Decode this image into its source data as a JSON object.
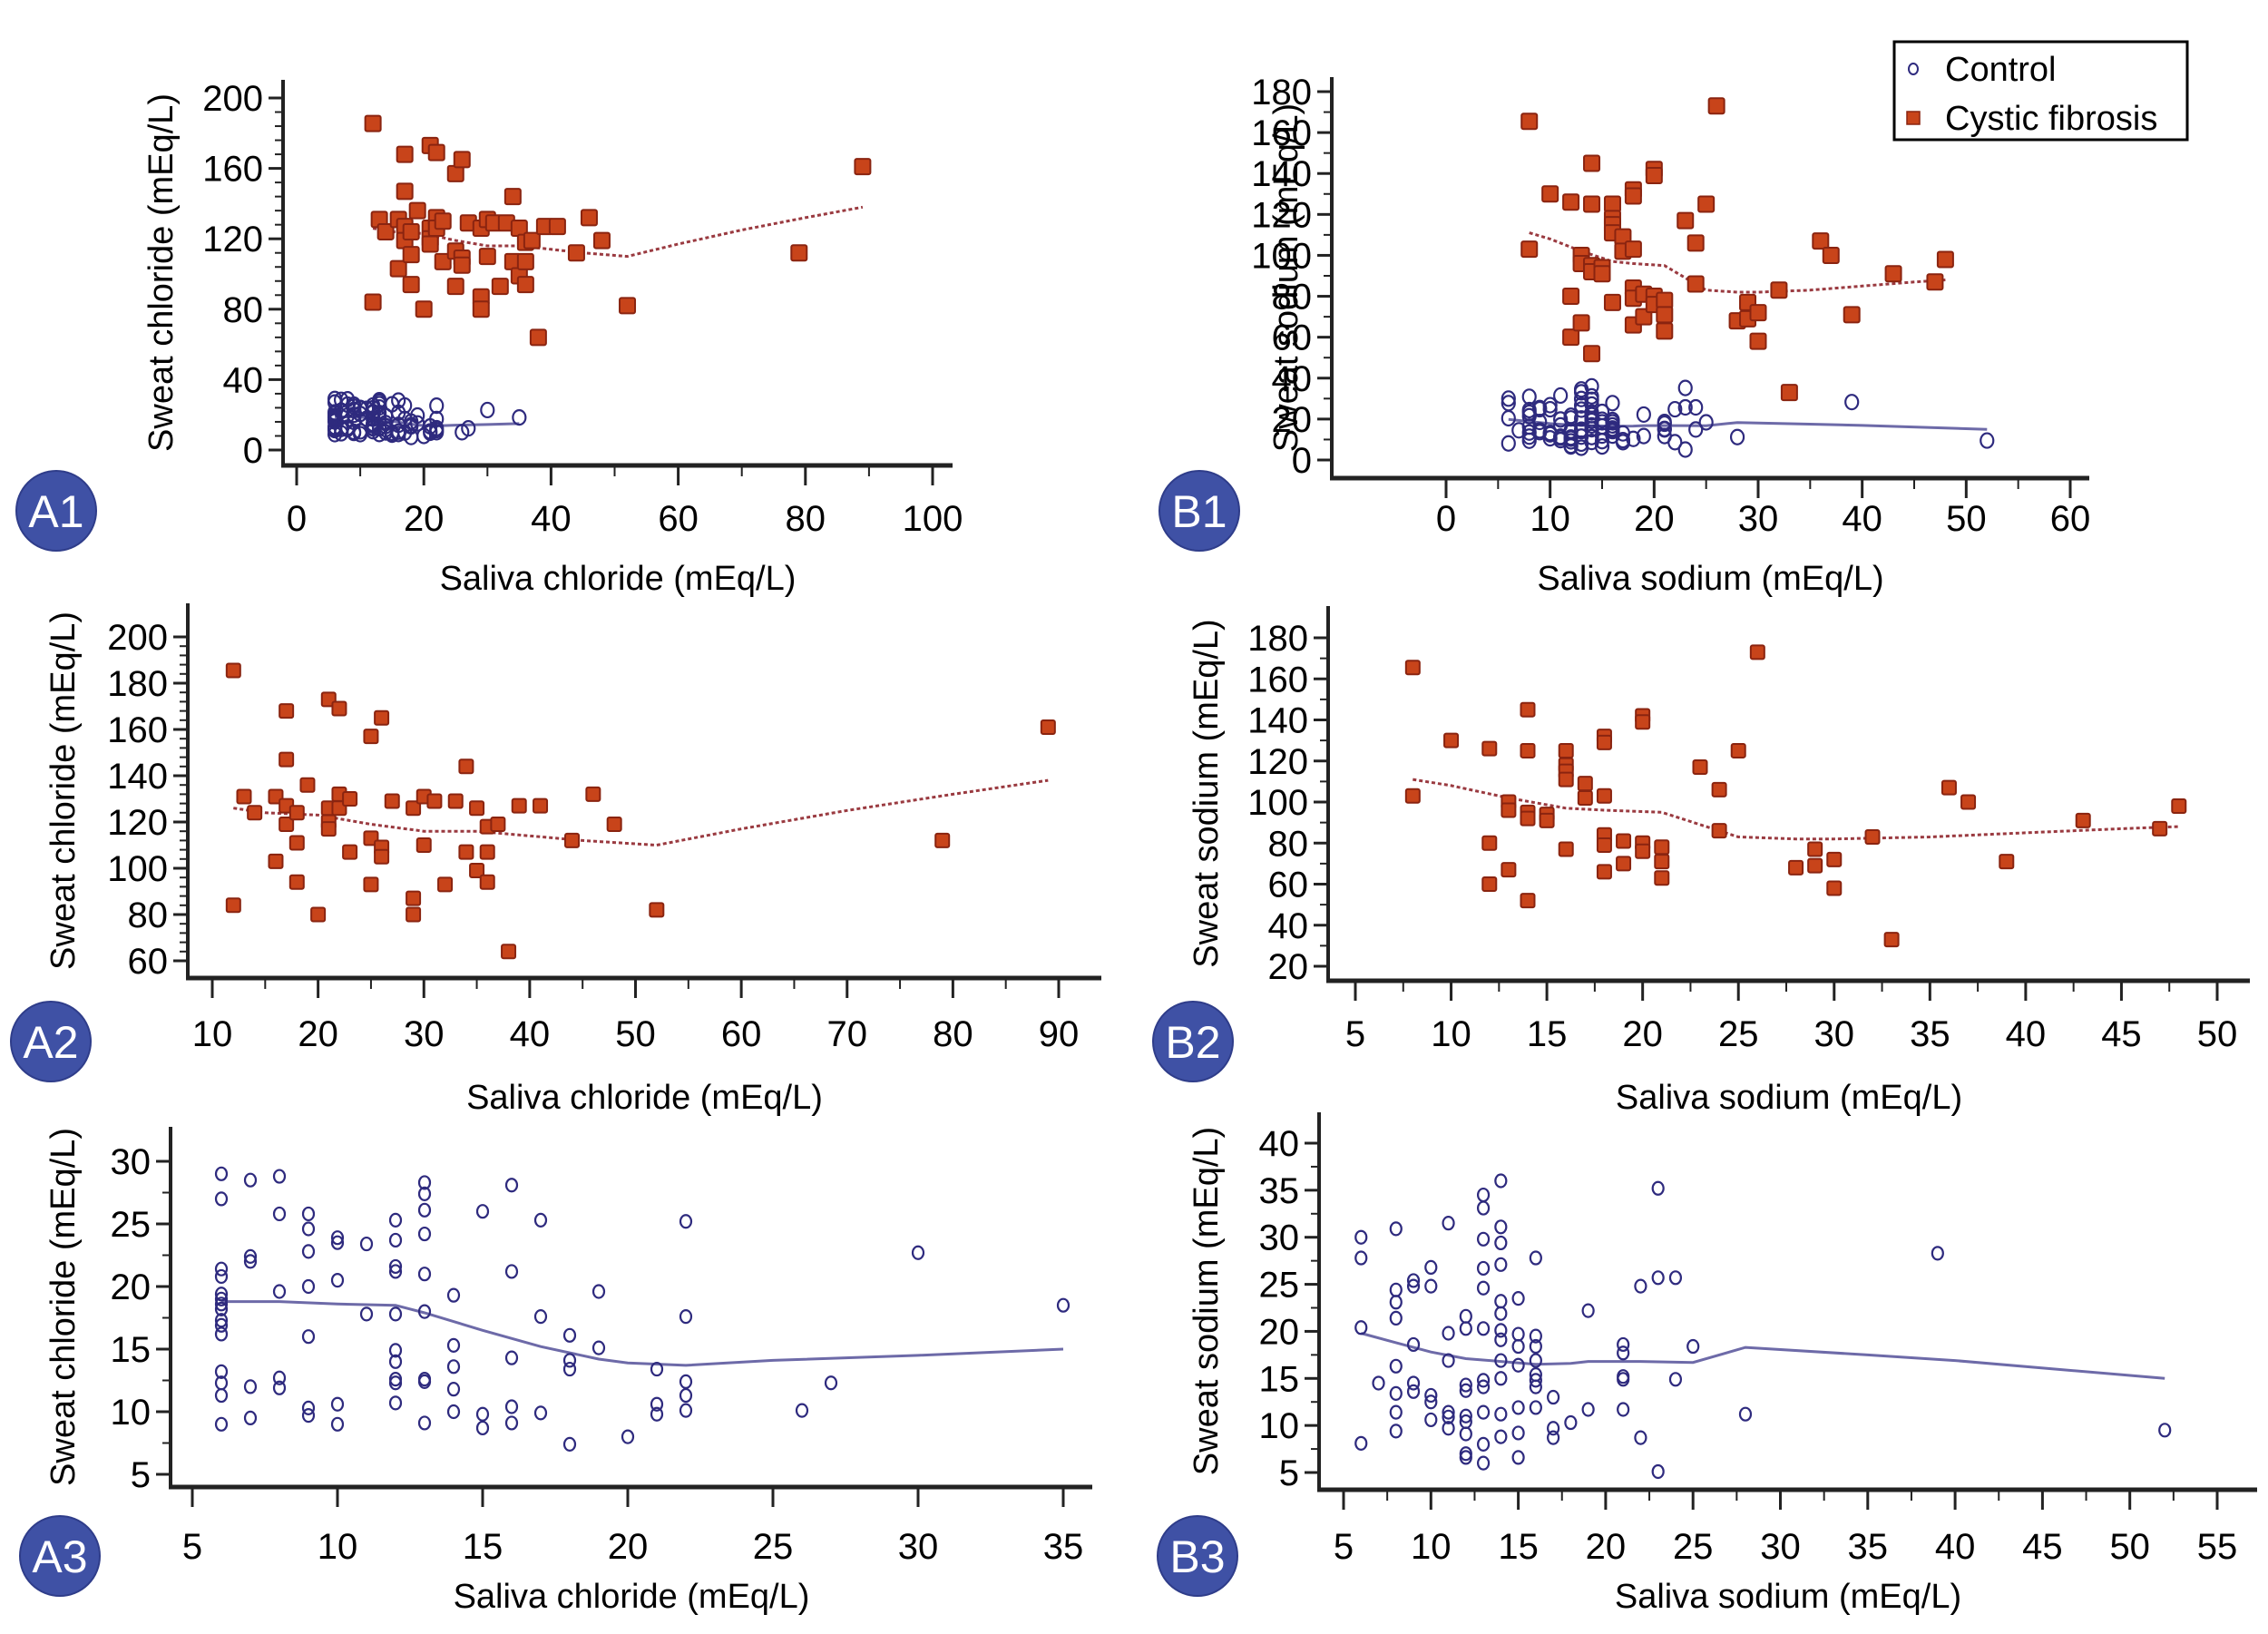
{
  "colors": {
    "control": "#2e2a7e",
    "control_line": "#6d6aa8",
    "cf_fill": "#c8441a",
    "cf_edge": "#8a2410",
    "cf_line": "#9a3a40",
    "badge": "#3f51a5",
    "axis": "#222222"
  },
  "legend": {
    "placement": "top-right",
    "items": [
      {
        "label": "Control",
        "marker": "open-circle"
      },
      {
        "label": "Cystic fibrosis",
        "marker": "filled-square"
      }
    ]
  },
  "datasets": {
    "control_chloride": {
      "x": [
        6,
        6,
        6,
        6,
        6,
        6,
        6,
        6,
        6,
        6,
        6,
        6,
        6,
        6,
        6,
        7,
        7,
        7,
        7,
        7,
        8,
        8,
        8,
        8,
        8,
        9,
        9,
        9,
        9,
        9,
        9,
        9,
        10,
        10,
        10,
        10,
        10,
        11,
        11,
        12,
        12,
        12,
        12,
        12,
        12,
        12,
        12,
        12,
        12,
        13,
        13,
        13,
        13,
        13,
        13,
        13,
        13,
        13,
        14,
        14,
        14,
        14,
        14,
        15,
        15,
        15,
        16,
        16,
        16,
        16,
        16,
        17,
        17,
        17,
        18,
        18,
        18,
        18,
        19,
        19,
        20,
        21,
        21,
        21,
        22,
        22,
        22,
        22,
        22,
        26,
        27,
        30,
        35
      ],
      "y": [
        29,
        27,
        21.4,
        20.8,
        19.4,
        19,
        18.6,
        18.2,
        17.3,
        16.9,
        16.2,
        13.2,
        12.3,
        11.3,
        9.0,
        28.5,
        22.4,
        22,
        12,
        9.5,
        28.8,
        25.8,
        19.6,
        12.7,
        11.9,
        25.8,
        24.6,
        22.8,
        20,
        16,
        10.3,
        9.7,
        23.9,
        23.5,
        20.5,
        10.6,
        9,
        23.4,
        17.8,
        25.3,
        23.7,
        21.6,
        21.2,
        17.8,
        14.9,
        14.0,
        12.6,
        12.3,
        10.7,
        28.3,
        27.4,
        26.1,
        24.2,
        21,
        18,
        12.6,
        12.4,
        9.1,
        19.3,
        15.3,
        13.6,
        11.8,
        10,
        26,
        9.8,
        8.7,
        28.1,
        21.2,
        14.3,
        10.4,
        9.1,
        25.3,
        17.6,
        9.9,
        16.1,
        14.1,
        13.4,
        7.4,
        19.6,
        15.1,
        8.0,
        13.4,
        10.6,
        9.8,
        25.2,
        17.6,
        12.4,
        11.3,
        10.1,
        10.1,
        12.3,
        22.7,
        18.5
      ]
    },
    "cf_chloride": {
      "x": [
        12,
        12,
        13,
        14,
        16,
        16,
        17,
        17,
        17,
        17,
        18,
        18,
        18,
        19,
        20,
        21,
        21,
        21,
        21,
        22,
        22,
        22,
        23,
        23,
        25,
        25,
        25,
        26,
        26,
        26,
        27,
        29,
        29,
        29,
        30,
        30,
        31,
        32,
        33,
        34,
        34,
        35,
        35,
        36,
        36,
        36,
        37,
        38,
        39,
        41,
        44,
        46,
        48,
        52,
        79,
        89
      ],
      "y": [
        185.5,
        84,
        131,
        124,
        131,
        103,
        168,
        147,
        127,
        119,
        124,
        111,
        94,
        136,
        80,
        173,
        126,
        120,
        117,
        169,
        132,
        126,
        130,
        107,
        157,
        113,
        93,
        165,
        109,
        105,
        129,
        126,
        87,
        80,
        131,
        110,
        129,
        93,
        129,
        144,
        107,
        126,
        99,
        118,
        107,
        94,
        119,
        64,
        127,
        127,
        112,
        132,
        119,
        82,
        112,
        161
      ]
    },
    "control_sodium": {
      "x": [
        6,
        6,
        6,
        6,
        7,
        8,
        8,
        8,
        8,
        8,
        8,
        8,
        8,
        9,
        9,
        9,
        9,
        9,
        10,
        10,
        10,
        10,
        10,
        11,
        11,
        11,
        11,
        11,
        11,
        12,
        12,
        12,
        12,
        12,
        12,
        12,
        12,
        12,
        13,
        13,
        13,
        13,
        13,
        13,
        13,
        13,
        13,
        13,
        13,
        14,
        14,
        14,
        14,
        14,
        14,
        14,
        14,
        14,
        14,
        14,
        14,
        15,
        15,
        15,
        15,
        15,
        15,
        15,
        16,
        16,
        16,
        16,
        16,
        16,
        16,
        16,
        17,
        17,
        17,
        18,
        19,
        19,
        21,
        21,
        21,
        21,
        21,
        22,
        22,
        23,
        23,
        23,
        24,
        24,
        25,
        28,
        39,
        52
      ],
      "y": [
        30,
        27.8,
        20.4,
        8.1,
        14.5,
        30.9,
        24.4,
        23.1,
        21.4,
        16.3,
        13.4,
        11.4,
        9.4,
        25.4,
        24.8,
        18.6,
        14.5,
        13.6,
        26.8,
        24.8,
        13.2,
        12.5,
        10.6,
        31.5,
        19.8,
        16.9,
        11.4,
        10.9,
        9.7,
        21.6,
        20.3,
        14.3,
        13.7,
        11.0,
        10.4,
        9.1,
        7.0,
        6.6,
        34.5,
        33.1,
        29.8,
        26.7,
        24.6,
        20.3,
        14.8,
        14.1,
        11.4,
        8.0,
        6.0,
        36,
        31.1,
        29.4,
        27.1,
        23.2,
        21.9,
        20.1,
        19.1,
        16.9,
        15.0,
        11.2,
        8.8,
        23.5,
        19.7,
        18.4,
        16.4,
        11.9,
        9.2,
        6.6,
        27.8,
        19.5,
        18.4,
        16.9,
        15.4,
        14.8,
        14.1,
        11.9,
        13.0,
        9.7,
        8.7,
        10.3,
        22.2,
        11.7,
        18.6,
        17.7,
        15.2,
        14.9,
        11.7,
        24.8,
        8.7,
        35.2,
        25.7,
        5.1,
        25.7,
        14.9,
        18.4,
        11.2,
        28.3,
        9.5
      ]
    },
    "cf_sodium": {
      "x": [
        8,
        8,
        10,
        12,
        12,
        12,
        13,
        13,
        13,
        14,
        14,
        14,
        14,
        14,
        15,
        15,
        16,
        16,
        16,
        16,
        16,
        17,
        17,
        18,
        18,
        18,
        18,
        18,
        18,
        19,
        19,
        20,
        20,
        20,
        20,
        21,
        21,
        21,
        23,
        24,
        24,
        25,
        26,
        28,
        29,
        29,
        30,
        30,
        32,
        33,
        36,
        37,
        39,
        43,
        47,
        48
      ],
      "y": [
        165.5,
        103,
        130,
        126,
        80,
        60,
        100,
        96,
        67,
        145,
        125,
        95,
        92,
        52,
        94,
        91,
        125,
        118,
        115,
        111,
        77,
        109,
        102,
        132,
        129,
        103,
        84,
        79,
        66,
        81,
        70,
        142,
        139,
        80,
        76,
        78,
        71,
        63,
        117,
        106,
        86,
        125,
        173,
        68,
        77,
        69,
        72,
        58,
        83,
        33,
        107,
        100,
        71,
        91,
        87,
        98
      ]
    },
    "lowess": {
      "control_chloride": {
        "x": [
          6,
          8,
          10,
          12,
          13,
          15,
          17,
          19,
          20,
          22,
          25,
          30,
          35
        ],
        "y": [
          18.8,
          18.8,
          18.6,
          18.5,
          17.9,
          16.5,
          15.2,
          14.2,
          13.9,
          13.7,
          14.1,
          14.5,
          15.0
        ]
      },
      "cf_chloride": {
        "x": [
          12,
          15,
          20,
          25,
          30,
          35,
          40,
          45,
          52,
          60,
          70,
          80,
          89
        ],
        "y": [
          126,
          124,
          123,
          119,
          116,
          116,
          114,
          112,
          110,
          117,
          125,
          132,
          138
        ]
      },
      "control_sodium": {
        "x": [
          6,
          8,
          10,
          12,
          14,
          16,
          18,
          19,
          22,
          25,
          28,
          35,
          40,
          52
        ],
        "y": [
          19.8,
          18.8,
          17.8,
          17.1,
          16.8,
          16.5,
          16.6,
          16.8,
          16.8,
          16.7,
          18.3,
          17.5,
          16.9,
          15.0
        ]
      },
      "cf_sodium": {
        "x": [
          8,
          10,
          13,
          16,
          18,
          21,
          23,
          25,
          28,
          30,
          35,
          40,
          45,
          48
        ],
        "y": [
          111,
          108,
          102,
          97,
          96,
          95,
          89,
          83,
          82,
          82,
          83,
          85,
          87,
          88
        ]
      }
    }
  },
  "chart_data": [
    {
      "id": "A1",
      "type": "scatter",
      "badge": "A1",
      "xlabel": "Saliva chloride (mEq/L)",
      "ylabel": "Sweat chloride (mEq/L)",
      "xlim": [
        0,
        100
      ],
      "ylim": [
        0,
        200
      ],
      "xticks": [
        0,
        20,
        40,
        60,
        80,
        100
      ],
      "yticks": [
        0,
        40,
        80,
        120,
        160,
        200
      ],
      "series": [
        {
          "name": "Control",
          "data": "control_chloride",
          "lowess": "control_chloride",
          "marker": "open-circle"
        },
        {
          "name": "Cystic fibrosis",
          "data": "cf_chloride",
          "lowess": "cf_chloride",
          "marker": "filled-square"
        }
      ],
      "grid": false
    },
    {
      "id": "B1",
      "type": "scatter",
      "badge": "B1",
      "xlabel": "Saliva sodium (mEq/L)",
      "ylabel": "Sweat sodium (mEq/L)",
      "xlim": [
        0,
        60
      ],
      "ylim": [
        0,
        180
      ],
      "xticks": [
        0,
        10,
        20,
        30,
        40,
        50,
        60
      ],
      "yticks": [
        0,
        20,
        40,
        60,
        80,
        100,
        120,
        140,
        160,
        180
      ],
      "series": [
        {
          "name": "Control",
          "data": "control_sodium",
          "lowess": "control_sodium",
          "marker": "open-circle"
        },
        {
          "name": "Cystic fibrosis",
          "data": "cf_sodium",
          "lowess": "cf_sodium",
          "marker": "filled-square"
        }
      ],
      "legend": true,
      "grid": false
    },
    {
      "id": "A2",
      "type": "scatter",
      "badge": "A2",
      "xlabel": "Saliva chloride (mEq/L)",
      "ylabel": "Sweat chloride (mEq/L)",
      "xlim": [
        10,
        90
      ],
      "ylim": [
        60,
        200
      ],
      "xticks": [
        10,
        20,
        30,
        40,
        50,
        60,
        70,
        80,
        90
      ],
      "yticks": [
        60,
        80,
        100,
        120,
        140,
        160,
        180,
        200
      ],
      "series": [
        {
          "name": "Cystic fibrosis",
          "data": "cf_chloride",
          "lowess": "cf_chloride",
          "marker": "filled-square"
        }
      ],
      "grid": false
    },
    {
      "id": "B2",
      "type": "scatter",
      "badge": "B2",
      "xlabel": "Saliva sodium (mEq/L)",
      "ylabel": "Sweat sodium (mEq/L)",
      "xlim": [
        5,
        50
      ],
      "ylim": [
        20,
        180
      ],
      "xticks": [
        5,
        10,
        15,
        20,
        25,
        30,
        35,
        40,
        45,
        50
      ],
      "yticks": [
        20,
        40,
        60,
        80,
        100,
        120,
        140,
        160,
        180
      ],
      "series": [
        {
          "name": "Cystic fibrosis",
          "data": "cf_sodium",
          "lowess": "cf_sodium",
          "marker": "filled-square"
        }
      ],
      "grid": false
    },
    {
      "id": "A3",
      "type": "scatter",
      "badge": "A3",
      "xlabel": "Saliva chloride (mEq/L)",
      "ylabel": "Sweat chloride (mEq/L)",
      "xlim": [
        5,
        35
      ],
      "ylim": [
        5,
        30
      ],
      "xticks": [
        5,
        10,
        15,
        20,
        25,
        30,
        35
      ],
      "yticks": [
        5,
        10,
        15,
        20,
        25,
        30
      ],
      "series": [
        {
          "name": "Control",
          "data": "control_chloride",
          "lowess": "control_chloride",
          "marker": "open-circle"
        }
      ],
      "grid": false
    },
    {
      "id": "B3",
      "type": "scatter",
      "badge": "B3",
      "xlabel": "Saliva sodium (mEq/L)",
      "ylabel": "Sweat sodium (mEq/L)",
      "xlim": [
        5,
        55
      ],
      "ylim": [
        5,
        40
      ],
      "xticks": [
        5,
        10,
        15,
        20,
        25,
        30,
        35,
        40,
        45,
        50,
        55
      ],
      "yticks": [
        5,
        10,
        15,
        20,
        25,
        30,
        35,
        40
      ],
      "series": [
        {
          "name": "Control",
          "data": "control_sodium",
          "lowess": "control_sodium",
          "marker": "open-circle"
        }
      ],
      "grid": false
    }
  ]
}
